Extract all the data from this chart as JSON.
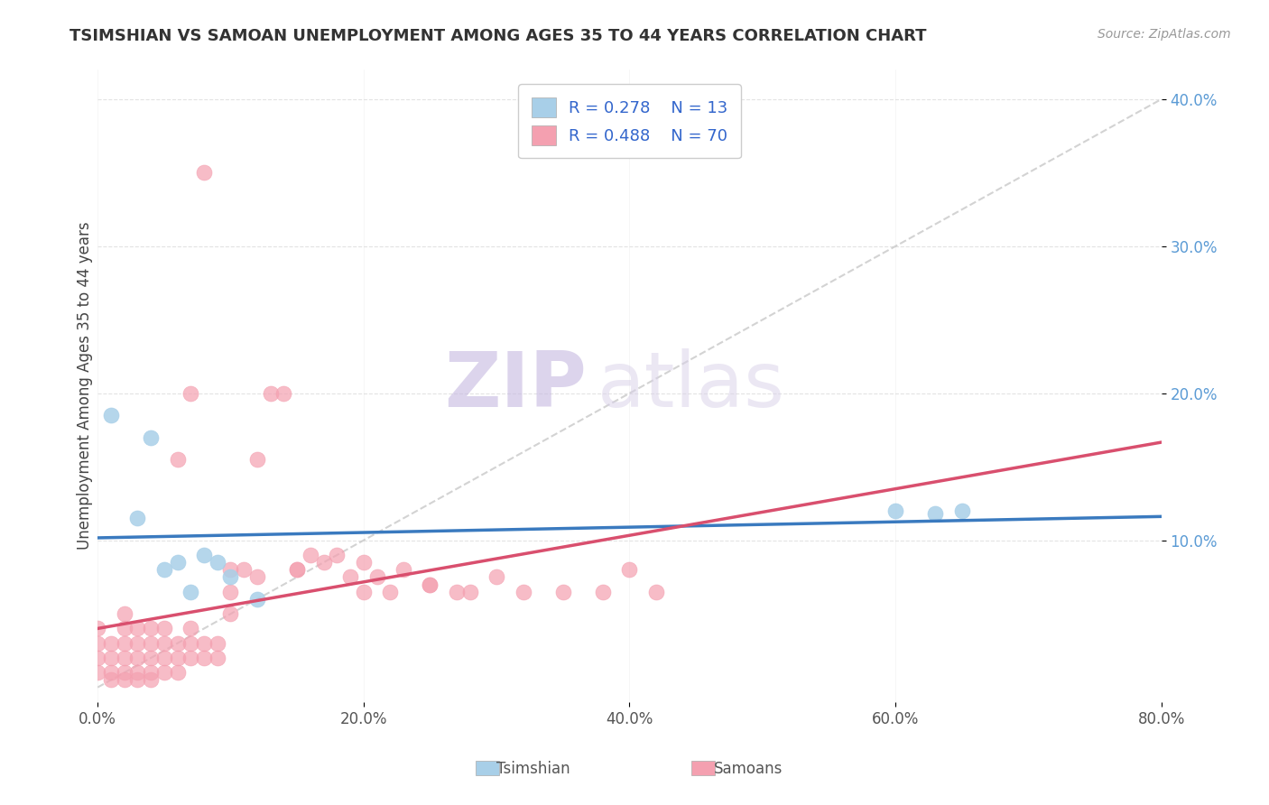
{
  "title": "TSIMSHIAN VS SAMOAN UNEMPLOYMENT AMONG AGES 35 TO 44 YEARS CORRELATION CHART",
  "source": "Source: ZipAtlas.com",
  "ylabel": "Unemployment Among Ages 35 to 44 years",
  "legend_labels": [
    "Tsimshian",
    "Samoans"
  ],
  "r_tsimshian": 0.278,
  "n_tsimshian": 13,
  "r_samoan": 0.488,
  "n_samoan": 70,
  "xlim": [
    0.0,
    0.8
  ],
  "ylim": [
    -0.01,
    0.42
  ],
  "xticks": [
    0.0,
    0.2,
    0.4,
    0.6,
    0.8
  ],
  "yticks": [
    0.1,
    0.2,
    0.3,
    0.4
  ],
  "tsimshian_x": [
    0.01,
    0.03,
    0.04,
    0.05,
    0.06,
    0.07,
    0.08,
    0.09,
    0.1,
    0.6,
    0.63,
    0.65,
    0.12
  ],
  "tsimshian_y": [
    0.185,
    0.115,
    0.17,
    0.08,
    0.085,
    0.065,
    0.09,
    0.085,
    0.075,
    0.12,
    0.118,
    0.12,
    0.06
  ],
  "samoan_x": [
    0.0,
    0.0,
    0.0,
    0.0,
    0.01,
    0.01,
    0.01,
    0.01,
    0.02,
    0.02,
    0.02,
    0.02,
    0.02,
    0.02,
    0.03,
    0.03,
    0.03,
    0.03,
    0.03,
    0.04,
    0.04,
    0.04,
    0.04,
    0.04,
    0.05,
    0.05,
    0.05,
    0.05,
    0.06,
    0.06,
    0.06,
    0.07,
    0.07,
    0.07,
    0.08,
    0.08,
    0.09,
    0.09,
    0.1,
    0.1,
    0.11,
    0.12,
    0.13,
    0.14,
    0.15,
    0.16,
    0.17,
    0.18,
    0.19,
    0.2,
    0.21,
    0.22,
    0.23,
    0.25,
    0.27,
    0.3,
    0.32,
    0.35,
    0.38,
    0.4,
    0.42,
    0.06,
    0.07,
    0.08,
    0.1,
    0.12,
    0.15,
    0.2,
    0.25,
    0.28
  ],
  "samoan_y": [
    0.01,
    0.02,
    0.03,
    0.04,
    0.005,
    0.01,
    0.02,
    0.03,
    0.005,
    0.01,
    0.02,
    0.03,
    0.04,
    0.05,
    0.005,
    0.01,
    0.02,
    0.03,
    0.04,
    0.005,
    0.01,
    0.02,
    0.03,
    0.04,
    0.01,
    0.02,
    0.03,
    0.04,
    0.01,
    0.02,
    0.03,
    0.02,
    0.03,
    0.04,
    0.02,
    0.03,
    0.02,
    0.03,
    0.05,
    0.065,
    0.08,
    0.155,
    0.2,
    0.2,
    0.08,
    0.09,
    0.085,
    0.09,
    0.075,
    0.065,
    0.075,
    0.065,
    0.08,
    0.07,
    0.065,
    0.075,
    0.065,
    0.065,
    0.065,
    0.08,
    0.065,
    0.155,
    0.2,
    0.35,
    0.08,
    0.075,
    0.08,
    0.085,
    0.07,
    0.065
  ],
  "blue_dot_color": "#a8cfe8",
  "pink_dot_color": "#f4a0b0",
  "blue_line_color": "#3a7abf",
  "pink_line_color": "#d94f6e",
  "ref_line_color": "#c8c8c8",
  "background_color": "#ffffff",
  "watermark_zip": "ZIP",
  "watermark_atlas": "atlas",
  "watermark_color": "#e8e0f0"
}
